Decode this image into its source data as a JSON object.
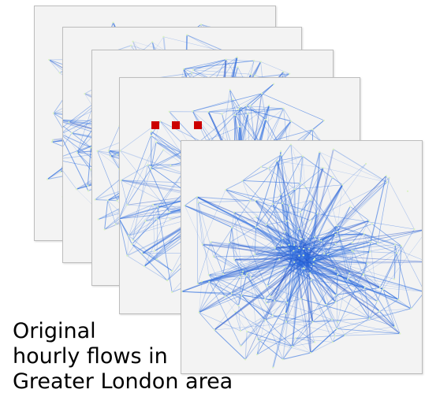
{
  "caption": {
    "line1": "Original",
    "line2": "hourly flows in",
    "line3": "Greater London area"
  },
  "frames": [
    {
      "name": "flow-map-frame-1"
    },
    {
      "name": "flow-map-frame-2"
    },
    {
      "name": "flow-map-frame-3"
    },
    {
      "name": "flow-map-frame-4"
    },
    {
      "name": "flow-map-frame-5"
    }
  ],
  "colors": {
    "edge": "#2f6fe0",
    "edge_dark": "#1f4fc8",
    "node": "#d9f2c0",
    "background": "#f3f3f3",
    "ellipsis_dot": "#cc0000"
  },
  "icons": {
    "sequence_marker": "ellipsis-dots"
  }
}
